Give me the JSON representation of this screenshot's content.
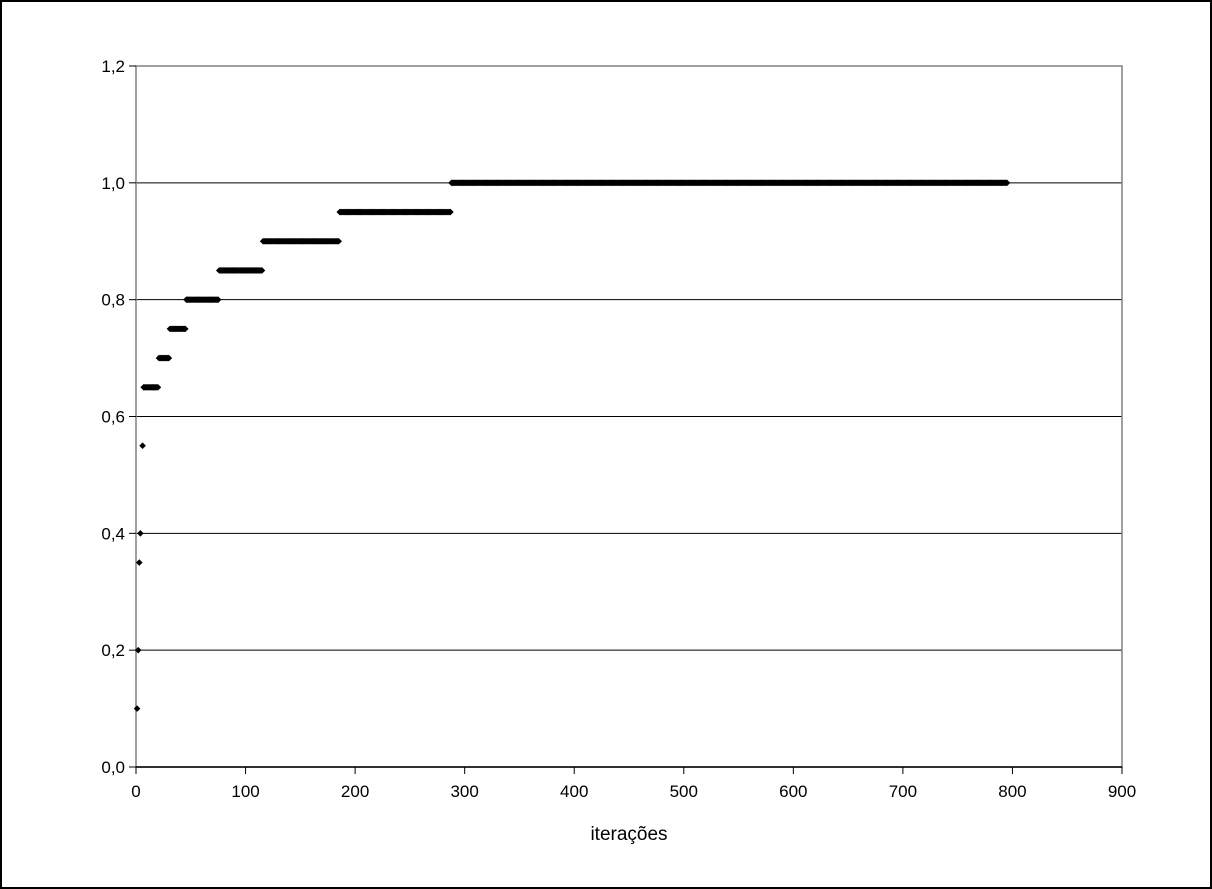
{
  "chart_data": {
    "type": "scatter",
    "title": "",
    "xlabel": "iterações",
    "ylabel": "",
    "xlim": [
      0,
      900
    ],
    "ylim": [
      0,
      1.2
    ],
    "xticks": [
      0,
      100,
      200,
      300,
      400,
      500,
      600,
      700,
      800,
      900
    ],
    "xtick_labels": [
      "0",
      "100",
      "200",
      "300",
      "400",
      "500",
      "600",
      "700",
      "800",
      "900"
    ],
    "yticks": [
      0,
      0.2,
      0.4,
      0.6,
      0.8,
      1.0,
      1.2
    ],
    "ytick_labels": [
      "0,0",
      "0,2",
      "0,4",
      "0,6",
      "0,8",
      "1,0",
      "1,2"
    ],
    "grid": "horizontal",
    "legend": "none",
    "marker": "diamond",
    "marker_color": "#000000",
    "point_groups": [
      {
        "y": 0.1,
        "x_from": 1,
        "x_to": 1
      },
      {
        "y": 0.2,
        "x_from": 2,
        "x_to": 2
      },
      {
        "y": 0.35,
        "x_from": 3,
        "x_to": 3
      },
      {
        "y": 0.4,
        "x_from": 4,
        "x_to": 4
      },
      {
        "y": 0.55,
        "x_from": 6,
        "x_to": 6
      },
      {
        "y": 0.65,
        "x_from": 7,
        "x_to": 20
      },
      {
        "y": 0.7,
        "x_from": 21,
        "x_to": 30
      },
      {
        "y": 0.75,
        "x_from": 31,
        "x_to": 45
      },
      {
        "y": 0.8,
        "x_from": 46,
        "x_to": 75
      },
      {
        "y": 0.85,
        "x_from": 76,
        "x_to": 115
      },
      {
        "y": 0.9,
        "x_from": 116,
        "x_to": 185
      },
      {
        "y": 0.95,
        "x_from": 186,
        "x_to": 287
      },
      {
        "y": 1.0,
        "x_from": 288,
        "x_to": 795
      }
    ]
  }
}
